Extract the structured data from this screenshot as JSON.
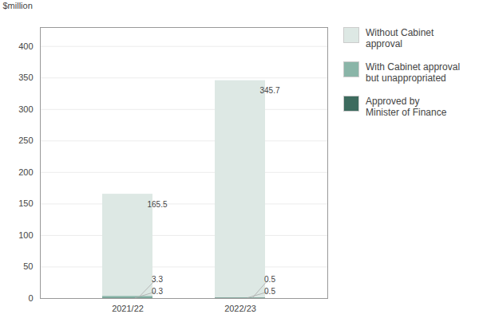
{
  "chart_data": {
    "type": "bar",
    "ylabel": "$million",
    "categories": [
      "2021/22",
      "2022/23"
    ],
    "series": [
      {
        "name": "Without Cabinet\napproval",
        "color": "#dde8e4",
        "values": [
          165.5,
          345.7
        ]
      },
      {
        "name": "With Cabinet approval\nbut unappropriated",
        "color": "#8ab5a8",
        "values": [
          3.3,
          0.5
        ]
      },
      {
        "name": "Approved by\nMinister of Finance",
        "color": "#3d6b5e",
        "values": [
          0.3,
          0.5
        ]
      }
    ],
    "ylim": [
      0,
      430
    ],
    "yticks": [
      0,
      50,
      100,
      150,
      200,
      250,
      300,
      350,
      400
    ],
    "grid": true,
    "legend": "right",
    "stacked": false,
    "data_labels": true
  }
}
